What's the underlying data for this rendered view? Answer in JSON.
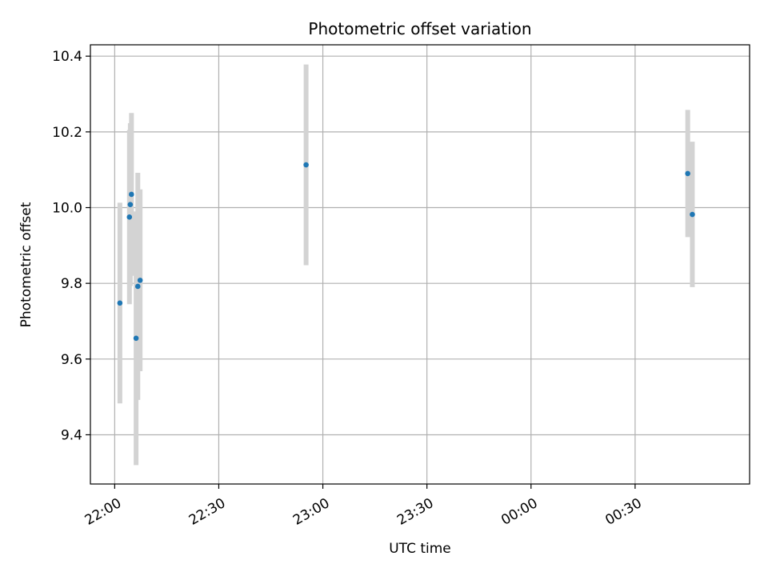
{
  "chart_data": {
    "type": "scatter",
    "title": "Photometric offset variation",
    "xlabel": "UTC time",
    "ylabel": "Photometric offset",
    "x_ticks": [
      "22:00",
      "22:30",
      "23:00",
      "23:30",
      "00:00",
      "00:30"
    ],
    "y_ticks": [
      "9.4",
      "9.6",
      "9.8",
      "10.0",
      "10.2",
      "10.4"
    ],
    "x_axis": "time (HH:MM, crosses midnight)",
    "xlim": [
      "21:53",
      "01:03"
    ],
    "ylim": [
      9.27,
      10.43
    ],
    "grid": true,
    "marker_color": "#1f77b4",
    "errorbar_color": "#d3d3d3",
    "points": [
      {
        "t": "22:01:30",
        "y": 9.748,
        "err": 0.265
      },
      {
        "t": "22:04:15",
        "y": 9.975,
        "err": 0.23
      },
      {
        "t": "22:04:30",
        "y": 10.008,
        "err": 0.215
      },
      {
        "t": "22:04:50",
        "y": 10.035,
        "err": 0.215
      },
      {
        "t": "22:06:10",
        "y": 9.655,
        "err": 0.335
      },
      {
        "t": "22:06:40",
        "y": 9.792,
        "err": 0.3
      },
      {
        "t": "22:07:20",
        "y": 9.808,
        "err": 0.24
      },
      {
        "t": "22:55:10",
        "y": 10.113,
        "err": 0.265
      },
      {
        "t": "00:45:10",
        "y": 10.09,
        "err": 0.168
      },
      {
        "t": "00:46:30",
        "y": 9.982,
        "err": 0.192
      }
    ]
  }
}
